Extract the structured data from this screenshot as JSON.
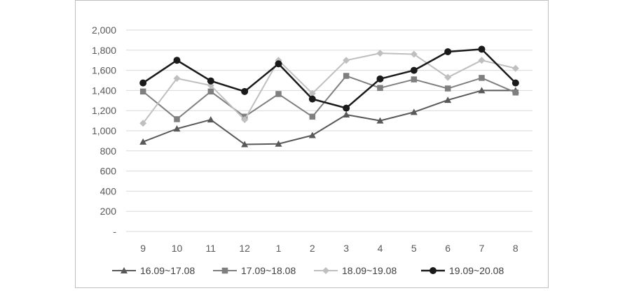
{
  "chart_data": {
    "type": "line",
    "categories": [
      "9",
      "10",
      "11",
      "12",
      "1",
      "2",
      "3",
      "4",
      "5",
      "6",
      "7",
      "8"
    ],
    "y_tick_labels": [
      "-",
      "200",
      "400",
      "600",
      "800",
      "1,000",
      "1,200",
      "1,400",
      "1,600",
      "1,800",
      "2,000"
    ],
    "ylim": [
      0,
      2000
    ],
    "y_step": 200,
    "grid": true,
    "legend_position": "bottom",
    "series": [
      {
        "name": "16.09~17.08",
        "marker": "triangle",
        "color": "#595959",
        "values": [
          890,
          1020,
          1110,
          865,
          870,
          955,
          1160,
          1100,
          1185,
          1305,
          1400,
          1400
        ]
      },
      {
        "name": "17.09~18.08",
        "marker": "square",
        "color": "#7f7f7f",
        "values": [
          1390,
          1115,
          1390,
          1140,
          1365,
          1140,
          1545,
          1425,
          1510,
          1420,
          1525,
          1380
        ]
      },
      {
        "name": "18.09~19.08",
        "marker": "diamond",
        "color": "#bfbfbf",
        "values": [
          1075,
          1520,
          1450,
          1110,
          1700,
          1370,
          1700,
          1770,
          1760,
          1530,
          1700,
          1620
        ]
      },
      {
        "name": "19.09~20.08",
        "marker": "circle",
        "color": "#1a1a1a",
        "values": [
          1475,
          1700,
          1495,
          1390,
          1665,
          1315,
          1225,
          1515,
          1600,
          1785,
          1810,
          1475
        ]
      }
    ]
  }
}
